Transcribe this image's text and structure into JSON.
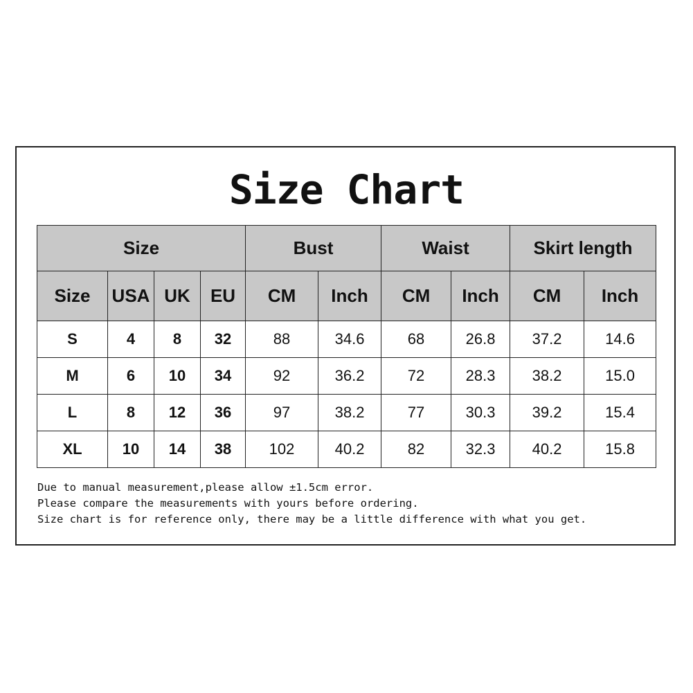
{
  "title": "Size Chart",
  "group_headers": [
    "Size",
    "Bust",
    "Waist",
    "Skirt length"
  ],
  "sub_headers": [
    "Size",
    "USA",
    "UK",
    "EU",
    "CM",
    "Inch",
    "CM",
    "Inch",
    "CM",
    "Inch"
  ],
  "rows": [
    [
      "S",
      "4",
      "8",
      "32",
      "88",
      "34.6",
      "68",
      "26.8",
      "37.2",
      "14.6"
    ],
    [
      "M",
      "6",
      "10",
      "34",
      "92",
      "36.2",
      "72",
      "28.3",
      "38.2",
      "15.0"
    ],
    [
      "L",
      "8",
      "12",
      "36",
      "97",
      "38.2",
      "77",
      "30.3",
      "39.2",
      "15.4"
    ],
    [
      "XL",
      "10",
      "14",
      "38",
      "102",
      "40.2",
      "82",
      "32.3",
      "40.2",
      "15.8"
    ]
  ],
  "notes": [
    "Due to manual measurement,please allow ±1.5cm error.",
    "Please compare the measurements with yours before ordering.",
    "Size chart is for reference only, there may be a little difference with what you get."
  ],
  "colors": {
    "header_bg": "#c8c8c8",
    "border": "#222222"
  }
}
